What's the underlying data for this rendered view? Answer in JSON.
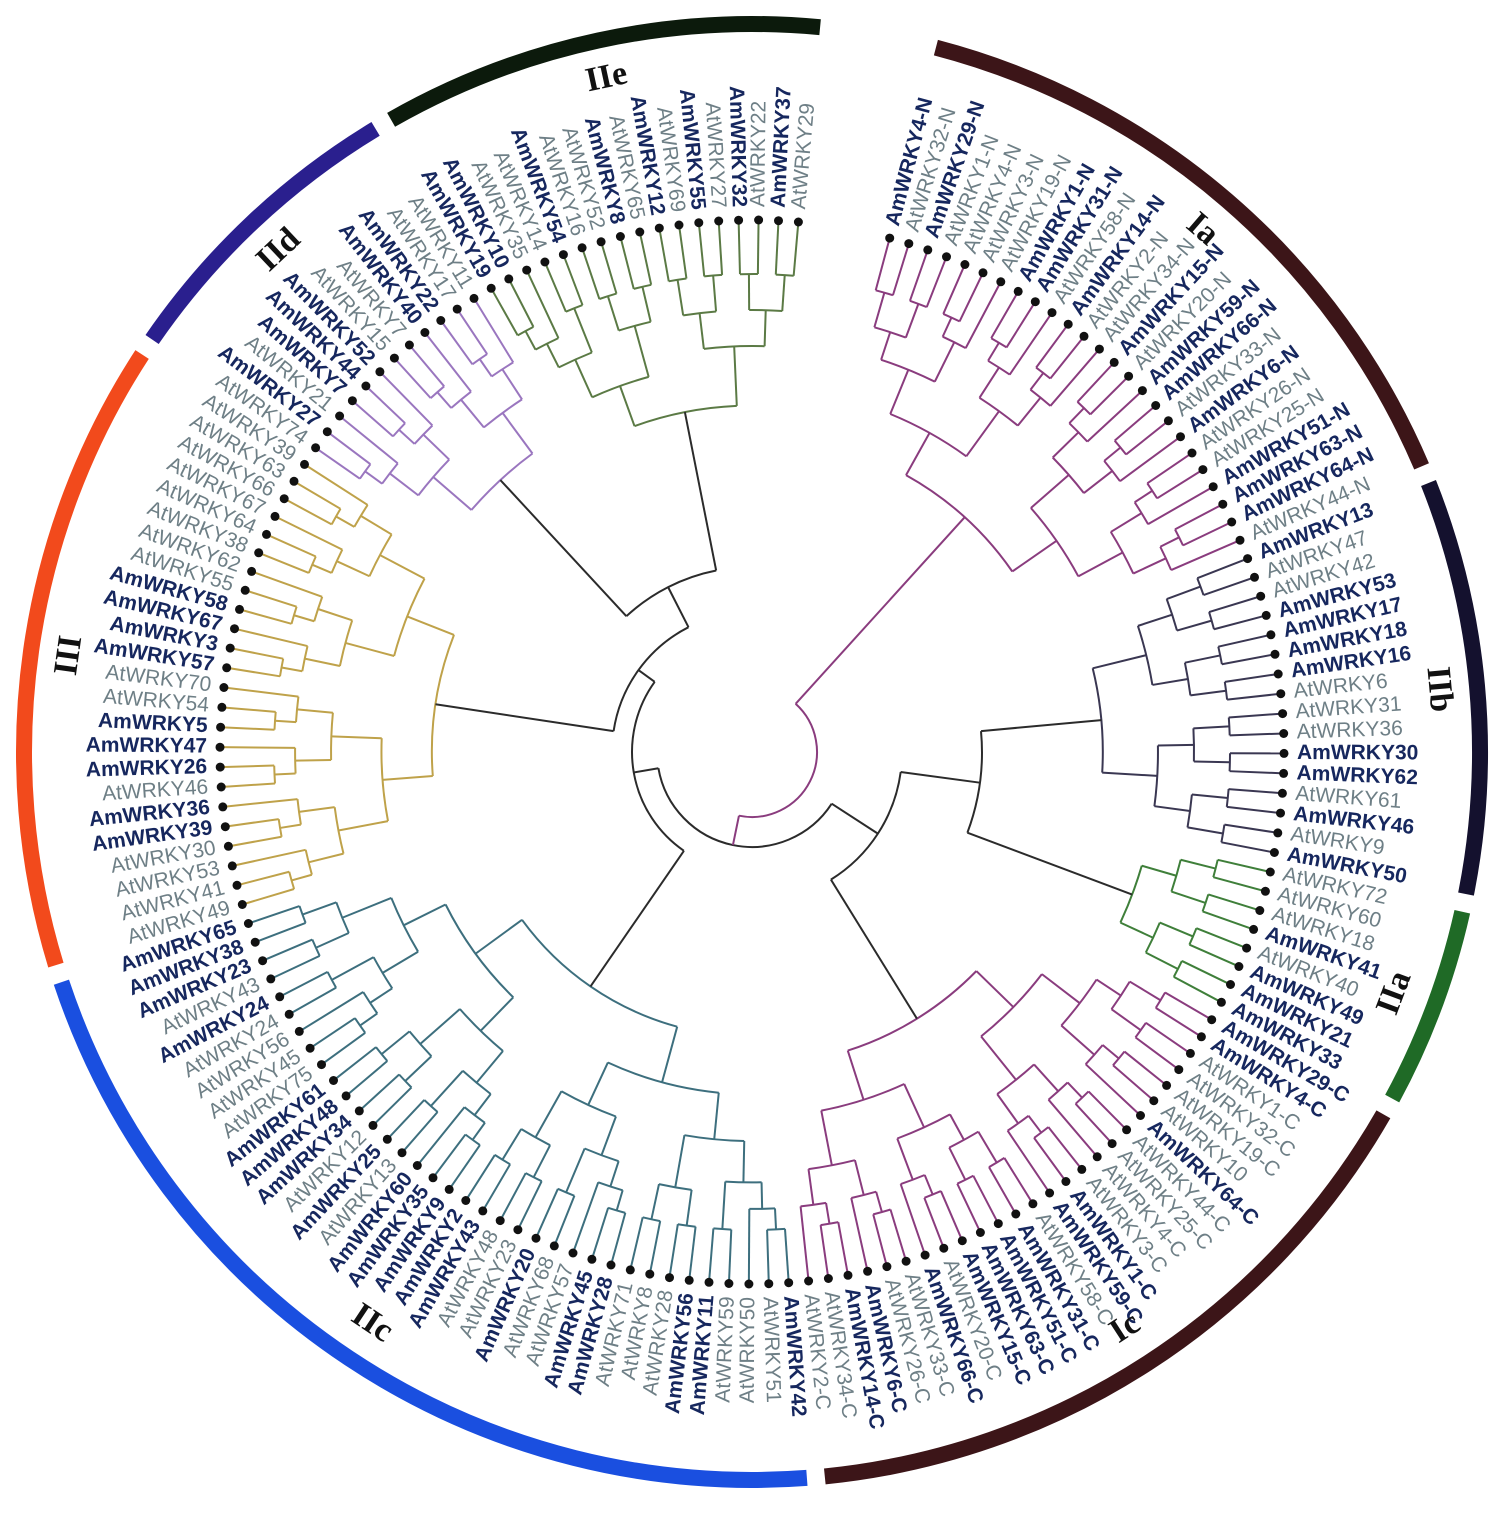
{
  "groups": [
    {
      "name": "Ia",
      "color": "#3c1518",
      "clade": "#8a3c7e"
    },
    {
      "name": "IIb",
      "color": "#14112e",
      "clade": "#3a3752"
    },
    {
      "name": "IIa",
      "color": "#1f6a26",
      "clade": "#3f7f3a"
    },
    {
      "name": "Ic",
      "color": "#3c1518",
      "clade": "#8a3c7e"
    },
    {
      "name": "IIc",
      "color": "#1a4fe0",
      "clade": "#3d6f7e"
    },
    {
      "name": "III",
      "color": "#f24a1c",
      "clade": "#bfa24a"
    },
    {
      "name": "IId",
      "color": "#2a1f8e",
      "clade": "#9a76bf"
    },
    {
      "name": "IIe",
      "color": "#0c1a0c",
      "clade": "#5b7a45"
    }
  ],
  "label_colors": {
    "Am": "#16275e",
    "At": "#6e7f86"
  },
  "leaves": [
    {
      "label": "AmWRKY4-N",
      "g": 0
    },
    {
      "label": "AtWRKY32-N",
      "g": 0
    },
    {
      "label": "AmWRKY29-N",
      "g": 0
    },
    {
      "label": "AtWRKY1-N",
      "g": 0
    },
    {
      "label": "AtWRKY4-N",
      "g": 0
    },
    {
      "label": "AtWRKY3-N",
      "g": 0
    },
    {
      "label": "AtWRKY19-N",
      "g": 0
    },
    {
      "label": "AmWRKY1-N",
      "g": 0
    },
    {
      "label": "AmWRKY31-N",
      "g": 0
    },
    {
      "label": "AtWRKY58-N",
      "g": 0
    },
    {
      "label": "AmWRKY14-N",
      "g": 0
    },
    {
      "label": "AtWRKY2-N",
      "g": 0
    },
    {
      "label": "AtWRKY34-N",
      "g": 0
    },
    {
      "label": "AmWRKY15-N",
      "g": 0
    },
    {
      "label": "AtWRKY20-N",
      "g": 0
    },
    {
      "label": "AmWRKY59-N",
      "g": 0
    },
    {
      "label": "AmWRKY66-N",
      "g": 0
    },
    {
      "label": "AtWRKY33-N",
      "g": 0
    },
    {
      "label": "AmWRKY6-N",
      "g": 0
    },
    {
      "label": "AtWRKY26-N",
      "g": 0
    },
    {
      "label": "AtWRKY25-N",
      "g": 0
    },
    {
      "label": "AmWRKY51-N",
      "g": 0
    },
    {
      "label": "AmWRKY63-N",
      "g": 0
    },
    {
      "label": "AmWRKY64-N",
      "g": 0
    },
    {
      "label": "AtWRKY44-N",
      "g": 0
    },
    {
      "label": "AmWRKY13",
      "g": 1
    },
    {
      "label": "AtWRKY47",
      "g": 1
    },
    {
      "label": "AtWRKY42",
      "g": 1
    },
    {
      "label": "AmWRKY53",
      "g": 1
    },
    {
      "label": "AmWRKY17",
      "g": 1
    },
    {
      "label": "AmWRKY18",
      "g": 1
    },
    {
      "label": "AmWRKY16",
      "g": 1
    },
    {
      "label": "AtWRKY6",
      "g": 1
    },
    {
      "label": "AtWRKY31",
      "g": 1
    },
    {
      "label": "AtWRKY36",
      "g": 1
    },
    {
      "label": "AmWRKY30",
      "g": 1
    },
    {
      "label": "AmWRKY62",
      "g": 1
    },
    {
      "label": "AtWRKY61",
      "g": 1
    },
    {
      "label": "AmWRKY46",
      "g": 1
    },
    {
      "label": "AtWRKY9",
      "g": 1
    },
    {
      "label": "AmWRKY50",
      "g": 1
    },
    {
      "label": "AtWRKY72",
      "g": 2
    },
    {
      "label": "AtWRKY60",
      "g": 2
    },
    {
      "label": "AtWRKY18",
      "g": 2
    },
    {
      "label": "AmWRKY41",
      "g": 2
    },
    {
      "label": "AtWRKY40",
      "g": 2
    },
    {
      "label": "AmWRKY49",
      "g": 2
    },
    {
      "label": "AmWRKY21",
      "g": 2
    },
    {
      "label": "AmWRKY33",
      "g": 2
    },
    {
      "label": "AmWRKY29-C",
      "g": 3
    },
    {
      "label": "AmWRKY4-C",
      "g": 3
    },
    {
      "label": "AtWRKY1-C",
      "g": 3
    },
    {
      "label": "AtWRKY32-C",
      "g": 3
    },
    {
      "label": "AtWRKY19-C",
      "g": 3
    },
    {
      "label": "AtWRKY10",
      "g": 3
    },
    {
      "label": "AmWRKY64-C",
      "g": 3
    },
    {
      "label": "AtWRKY44-C",
      "g": 3
    },
    {
      "label": "AtWRKY25-C",
      "g": 3
    },
    {
      "label": "AtWRKY4-C",
      "g": 3
    },
    {
      "label": "AtWRKY3-C",
      "g": 3
    },
    {
      "label": "AmWRKY1-C",
      "g": 3
    },
    {
      "label": "AmWRKY59-C",
      "g": 3
    },
    {
      "label": "AtWRKY58-C",
      "g": 3
    },
    {
      "label": "AmWRKY31-C",
      "g": 3
    },
    {
      "label": "AmWRKY51-C",
      "g": 3
    },
    {
      "label": "AmWRKY63-C",
      "g": 3
    },
    {
      "label": "AmWRKY15-C",
      "g": 3
    },
    {
      "label": "AtWRKY20-C",
      "g": 3
    },
    {
      "label": "AmWRKY66-C",
      "g": 3
    },
    {
      "label": "AtWRKY33-C",
      "g": 3
    },
    {
      "label": "AtWRKY26-C",
      "g": 3
    },
    {
      "label": "AmWRKY6-C",
      "g": 3
    },
    {
      "label": "AmWRKY14-C",
      "g": 3
    },
    {
      "label": "AtWRKY34-C",
      "g": 3
    },
    {
      "label": "AtWRKY2-C",
      "g": 3
    },
    {
      "label": "AmWRKY42",
      "g": 4
    },
    {
      "label": "AtWRKY51",
      "g": 4
    },
    {
      "label": "AtWRKY50",
      "g": 4
    },
    {
      "label": "AtWRKY59",
      "g": 4
    },
    {
      "label": "AmWRKY11",
      "g": 4
    },
    {
      "label": "AmWRKY56",
      "g": 4
    },
    {
      "label": "AtWRKY28",
      "g": 4
    },
    {
      "label": "AtWRKY8",
      "g": 4
    },
    {
      "label": "AtWRKY71",
      "g": 4
    },
    {
      "label": "AmWRKY28",
      "g": 4
    },
    {
      "label": "AmWRKY45",
      "g": 4
    },
    {
      "label": "AtWRKY57",
      "g": 4
    },
    {
      "label": "AtWRKY68",
      "g": 4
    },
    {
      "label": "AmWRKY20",
      "g": 4
    },
    {
      "label": "AtWRKY23",
      "g": 4
    },
    {
      "label": "AtWRKY48",
      "g": 4
    },
    {
      "label": "AmWRKY43",
      "g": 4
    },
    {
      "label": "AmWRKY2",
      "g": 4
    },
    {
      "label": "AmWRKY9",
      "g": 4
    },
    {
      "label": "AmWRKY35",
      "g": 4
    },
    {
      "label": "AmWRKY60",
      "g": 4
    },
    {
      "label": "AtWRKY13",
      "g": 4
    },
    {
      "label": "AmWRKY25",
      "g": 4
    },
    {
      "label": "AtWRKY12",
      "g": 4
    },
    {
      "label": "AmWRKY34",
      "g": 4
    },
    {
      "label": "AmWRKY48",
      "g": 4
    },
    {
      "label": "AmWRKY61",
      "g": 4
    },
    {
      "label": "AtWRKY75",
      "g": 4
    },
    {
      "label": "AtWRKY45",
      "g": 4
    },
    {
      "label": "AtWRKY56",
      "g": 4
    },
    {
      "label": "AtWRKY24",
      "g": 4
    },
    {
      "label": "AmWRKY24",
      "g": 4
    },
    {
      "label": "AtWRKY43",
      "g": 4
    },
    {
      "label": "AmWRKY23",
      "g": 4
    },
    {
      "label": "AmWRKY38",
      "g": 4
    },
    {
      "label": "AmWRKY65",
      "g": 4
    },
    {
      "label": "AtWRKY49",
      "g": 5
    },
    {
      "label": "AtWRKY41",
      "g": 5
    },
    {
      "label": "AtWRKY53",
      "g": 5
    },
    {
      "label": "AtWRKY30",
      "g": 5
    },
    {
      "label": "AmWRKY39",
      "g": 5
    },
    {
      "label": "AmWRKY36",
      "g": 5
    },
    {
      "label": "AtWRKY46",
      "g": 5
    },
    {
      "label": "AmWRKY26",
      "g": 5
    },
    {
      "label": "AmWRKY47",
      "g": 5
    },
    {
      "label": "AmWRKY5",
      "g": 5
    },
    {
      "label": "AtWRKY54",
      "g": 5
    },
    {
      "label": "AtWRKY70",
      "g": 5
    },
    {
      "label": "AmWRKY57",
      "g": 5
    },
    {
      "label": "AmWRKY3",
      "g": 5
    },
    {
      "label": "AmWRKY67",
      "g": 5
    },
    {
      "label": "AmWRKY58",
      "g": 5
    },
    {
      "label": "AtWRKY55",
      "g": 5
    },
    {
      "label": "AtWRKY62",
      "g": 5
    },
    {
      "label": "AtWRKY38",
      "g": 5
    },
    {
      "label": "AtWRKY64",
      "g": 5
    },
    {
      "label": "AtWRKY67",
      "g": 5
    },
    {
      "label": "AtWRKY66",
      "g": 5
    },
    {
      "label": "AtWRKY63",
      "g": 5
    },
    {
      "label": "AtWRKY39",
      "g": 5
    },
    {
      "label": "AtWRKY74",
      "g": 6
    },
    {
      "label": "AmWRKY27",
      "g": 6
    },
    {
      "label": "AtWRKY21",
      "g": 6
    },
    {
      "label": "AmWRKY7",
      "g": 6
    },
    {
      "label": "AmWRKY44",
      "g": 6
    },
    {
      "label": "AmWRKY52",
      "g": 6
    },
    {
      "label": "AtWRKY15",
      "g": 6
    },
    {
      "label": "AtWRKY7",
      "g": 6
    },
    {
      "label": "AmWRKY40",
      "g": 6
    },
    {
      "label": "AmWRKY22",
      "g": 6
    },
    {
      "label": "AtWRKY17",
      "g": 6
    },
    {
      "label": "AtWRKY11",
      "g": 6
    },
    {
      "label": "AmWRKY19",
      "g": 7
    },
    {
      "label": "AmWRKY10",
      "g": 7
    },
    {
      "label": "AtWRKY35",
      "g": 7
    },
    {
      "label": "AtWRKY14",
      "g": 7
    },
    {
      "label": "AmWRKY54",
      "g": 7
    },
    {
      "label": "AtWRKY16",
      "g": 7
    },
    {
      "label": "AtWRKY52",
      "g": 7
    },
    {
      "label": "AmWRKY8",
      "g": 7
    },
    {
      "label": "AtWRKY65",
      "g": 7
    },
    {
      "label": "AmWRKY12",
      "g": 7
    },
    {
      "label": "AtWRKY69",
      "g": 7
    },
    {
      "label": "AmWRKY55",
      "g": 7
    },
    {
      "label": "AtWRKY27",
      "g": 7
    },
    {
      "label": "AmWRKY32",
      "g": 7
    },
    {
      "label": "AtWRKY22",
      "g": 7
    },
    {
      "label": "AmWRKY37",
      "g": 7
    },
    {
      "label": "AtWRKY29",
      "g": 7
    }
  ]
}
